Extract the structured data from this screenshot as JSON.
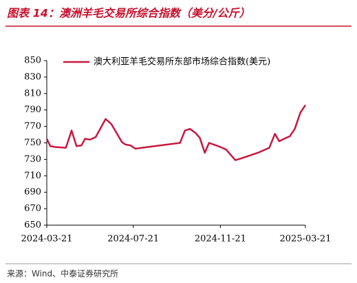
{
  "chart_data": {
    "type": "line",
    "title": "图表 14：澳洲羊毛交易所综合指数（美分/公斤）",
    "source": "来源：Wind、中泰证券研究所",
    "x": [
      "2024-03-21",
      "2024-03-26",
      "2024-04-02",
      "2024-04-17",
      "2024-04-25",
      "2024-05-02",
      "2024-05-09",
      "2024-05-14",
      "2024-05-21",
      "2024-05-29",
      "2024-06-12",
      "2024-06-20",
      "2024-07-05",
      "2024-07-10",
      "2024-07-17",
      "2024-07-24",
      "2024-09-25",
      "2024-10-02",
      "2024-10-09",
      "2024-10-17",
      "2024-10-23",
      "2024-10-30",
      "2024-11-05",
      "2024-11-21",
      "2024-11-29",
      "2024-12-12",
      "2024-12-20",
      "2025-01-13",
      "2025-01-29",
      "2025-02-06",
      "2025-02-12",
      "2025-02-19",
      "2025-02-27",
      "2025-03-06",
      "2025-03-14",
      "2025-03-21"
    ],
    "series": [
      {
        "name": "澳大利亚羊毛交易所东部市场综合指数(美元)",
        "color": "#c8173f",
        "values": [
          755,
          746,
          745,
          744,
          765,
          746,
          747,
          755,
          754,
          757,
          779,
          773,
          751,
          748,
          747,
          743,
          750,
          765,
          767,
          762,
          756,
          738,
          750,
          745,
          742,
          729,
          731,
          738,
          744,
          761,
          752,
          755,
          758,
          767,
          787,
          796
        ]
      }
    ],
    "xlim": [
      "2024-03-21",
      "2025-03-21"
    ],
    "xticks": [
      "2024-03-21",
      "2024-07-21",
      "2024-11-21",
      "2025-03-21"
    ],
    "ylim": [
      650,
      850
    ],
    "yticks": [
      650,
      670,
      690,
      710,
      730,
      750,
      770,
      790,
      810,
      830,
      850
    ],
    "grid": false,
    "legend": "top"
  }
}
